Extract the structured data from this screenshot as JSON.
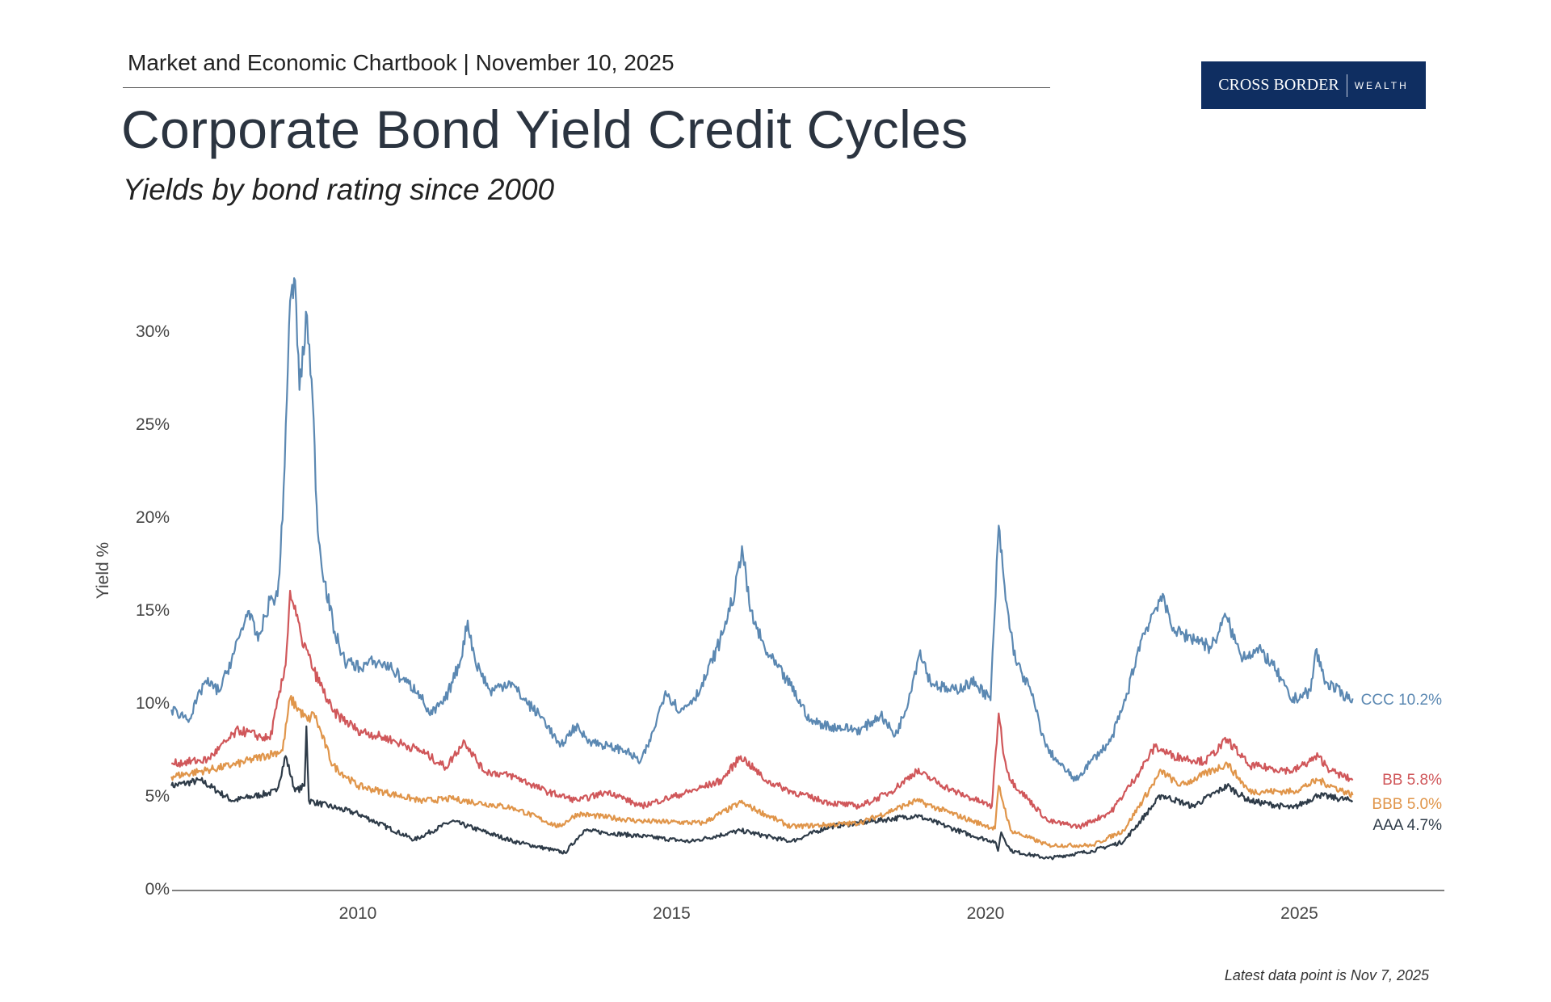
{
  "header": {
    "chartbook": "Market and Economic Chartbook | November 10, 2025",
    "title": "Corporate Bond Yield Credit Cycles",
    "subtitle": "Yields by bond rating since 2000"
  },
  "logo": {
    "primary": "CROSS BORDER",
    "secondary": "WEALTH",
    "background": "#0f2e61"
  },
  "footer": {
    "note": "Latest data point is Nov 7, 2025"
  },
  "chart_data": {
    "type": "line",
    "title": "Corporate Bond Yield Credit Cycles",
    "subtitle": "Yields by bond rating since 2000",
    "xlabel": "",
    "ylabel": "Yield %",
    "xlim": [
      2007.0,
      2027.3
    ],
    "ylim": [
      0,
      33
    ],
    "x_ticks": [
      {
        "value": 2010,
        "label": "2010"
      },
      {
        "value": 2015,
        "label": "2015"
      },
      {
        "value": 2020,
        "label": "2020"
      },
      {
        "value": 2025,
        "label": "2025"
      }
    ],
    "y_ticks": [
      {
        "value": 0,
        "label": "0%"
      },
      {
        "value": 5,
        "label": "5%"
      },
      {
        "value": 10,
        "label": "10%"
      },
      {
        "value": 15,
        "label": "15%"
      },
      {
        "value": 20,
        "label": "20%"
      },
      {
        "value": 25,
        "label": "25%"
      },
      {
        "value": 30,
        "label": "30%"
      }
    ],
    "grid": false,
    "legend": "end-of-line labels",
    "series": [
      {
        "name": "CCC",
        "end_label": "CCC 10.2%",
        "color": "#5b88b2",
        "points": [
          [
            2007.03,
            9.6
          ],
          [
            2007.32,
            9.1
          ],
          [
            2007.56,
            11.1
          ],
          [
            2007.8,
            10.6
          ],
          [
            2008.04,
            12.8
          ],
          [
            2008.25,
            14.9
          ],
          [
            2008.41,
            13.3
          ],
          [
            2008.6,
            15.5
          ],
          [
            2008.72,
            15.7
          ],
          [
            2008.8,
            19.8
          ],
          [
            2008.92,
            31.6
          ],
          [
            2009.0,
            32.7
          ],
          [
            2009.07,
            26.8
          ],
          [
            2009.19,
            30.8
          ],
          [
            2009.28,
            26.2
          ],
          [
            2009.36,
            19.2
          ],
          [
            2009.47,
            16.5
          ],
          [
            2009.63,
            13.8
          ],
          [
            2009.79,
            12.2
          ],
          [
            2010.03,
            11.9
          ],
          [
            2010.27,
            12.2
          ],
          [
            2010.51,
            11.9
          ],
          [
            2010.75,
            11.1
          ],
          [
            2010.96,
            10.6
          ],
          [
            2011.15,
            9.3
          ],
          [
            2011.39,
            10.1
          ],
          [
            2011.63,
            12.2
          ],
          [
            2011.75,
            14.4
          ],
          [
            2011.87,
            12.2
          ],
          [
            2012.11,
            10.6
          ],
          [
            2012.42,
            11.1
          ],
          [
            2012.66,
            10.1
          ],
          [
            2012.98,
            9.0
          ],
          [
            2013.22,
            7.6
          ],
          [
            2013.46,
            8.7
          ],
          [
            2013.7,
            7.9
          ],
          [
            2014.02,
            7.6
          ],
          [
            2014.26,
            7.4
          ],
          [
            2014.5,
            6.8
          ],
          [
            2014.66,
            7.9
          ],
          [
            2014.9,
            10.6
          ],
          [
            2015.14,
            9.5
          ],
          [
            2015.45,
            10.6
          ],
          [
            2015.77,
            13.3
          ],
          [
            2016.01,
            16.0
          ],
          [
            2016.12,
            18.4
          ],
          [
            2016.25,
            14.9
          ],
          [
            2016.49,
            12.8
          ],
          [
            2016.89,
            10.9
          ],
          [
            2017.21,
            9.0
          ],
          [
            2017.53,
            8.7
          ],
          [
            2018.01,
            8.5
          ],
          [
            2018.33,
            9.3
          ],
          [
            2018.56,
            8.2
          ],
          [
            2018.72,
            9.5
          ],
          [
            2018.96,
            12.8
          ],
          [
            2019.12,
            11.1
          ],
          [
            2019.44,
            10.6
          ],
          [
            2019.84,
            11.1
          ],
          [
            2020.08,
            10.1
          ],
          [
            2020.21,
            19.5
          ],
          [
            2020.32,
            15.5
          ],
          [
            2020.48,
            12.2
          ],
          [
            2020.72,
            10.6
          ],
          [
            2020.96,
            7.6
          ],
          [
            2021.2,
            6.6
          ],
          [
            2021.44,
            5.8
          ],
          [
            2021.67,
            6.8
          ],
          [
            2021.99,
            7.9
          ],
          [
            2022.23,
            10.1
          ],
          [
            2022.47,
            13.3
          ],
          [
            2022.79,
            15.7
          ],
          [
            2023.03,
            13.8
          ],
          [
            2023.43,
            13.3
          ],
          [
            2023.59,
            12.9
          ],
          [
            2023.83,
            14.6
          ],
          [
            2024.07,
            12.5
          ],
          [
            2024.39,
            12.8
          ],
          [
            2024.63,
            11.7
          ],
          [
            2024.87,
            10.1
          ],
          [
            2025.18,
            10.6
          ],
          [
            2025.26,
            12.8
          ],
          [
            2025.42,
            11.1
          ],
          [
            2025.74,
            10.3
          ],
          [
            2025.85,
            10.2
          ]
        ]
      },
      {
        "name": "BB",
        "end_label": "BB 5.8%",
        "color": "#d0575a",
        "points": [
          [
            2007.03,
            6.7
          ],
          [
            2007.6,
            6.9
          ],
          [
            2008.1,
            8.5
          ],
          [
            2008.6,
            8.0
          ],
          [
            2008.85,
            12.0
          ],
          [
            2008.92,
            16.0
          ],
          [
            2009.1,
            13.5
          ],
          [
            2009.3,
            11.7
          ],
          [
            2009.6,
            9.5
          ],
          [
            2010.0,
            8.5
          ],
          [
            2010.5,
            8.0
          ],
          [
            2011.0,
            7.4
          ],
          [
            2011.4,
            6.5
          ],
          [
            2011.7,
            7.9
          ],
          [
            2012.0,
            6.3
          ],
          [
            2012.5,
            6.0
          ],
          [
            2013.0,
            5.2
          ],
          [
            2013.5,
            4.7
          ],
          [
            2014.0,
            5.2
          ],
          [
            2014.5,
            4.4
          ],
          [
            2015.3,
            5.2
          ],
          [
            2015.8,
            5.8
          ],
          [
            2016.1,
            7.1
          ],
          [
            2016.5,
            5.8
          ],
          [
            2016.9,
            5.2
          ],
          [
            2017.5,
            4.6
          ],
          [
            2018.0,
            4.4
          ],
          [
            2018.5,
            5.2
          ],
          [
            2018.9,
            6.3
          ],
          [
            2019.5,
            5.2
          ],
          [
            2020.1,
            4.4
          ],
          [
            2020.21,
            9.4
          ],
          [
            2020.3,
            7.0
          ],
          [
            2020.4,
            5.8
          ],
          [
            2021.0,
            3.6
          ],
          [
            2021.5,
            3.3
          ],
          [
            2022.0,
            4.1
          ],
          [
            2022.4,
            6.0
          ],
          [
            2022.7,
            7.6
          ],
          [
            2023.0,
            7.1
          ],
          [
            2023.5,
            6.8
          ],
          [
            2023.85,
            8.0
          ],
          [
            2024.2,
            6.6
          ],
          [
            2024.9,
            6.3
          ],
          [
            2025.3,
            7.1
          ],
          [
            2025.5,
            6.3
          ],
          [
            2025.85,
            5.8
          ]
        ]
      },
      {
        "name": "BBB",
        "end_label": "BBB 5.0%",
        "color": "#e0954a",
        "points": [
          [
            2007.03,
            6.0
          ],
          [
            2008.0,
            6.6
          ],
          [
            2008.8,
            7.4
          ],
          [
            2008.92,
            10.2
          ],
          [
            2009.2,
            9.0
          ],
          [
            2009.3,
            9.4
          ],
          [
            2009.6,
            6.6
          ],
          [
            2010.0,
            5.5
          ],
          [
            2011.0,
            4.7
          ],
          [
            2011.5,
            4.8
          ],
          [
            2012.5,
            4.3
          ],
          [
            2013.2,
            3.3
          ],
          [
            2013.5,
            4.0
          ],
          [
            2014.5,
            3.6
          ],
          [
            2015.5,
            3.5
          ],
          [
            2016.1,
            4.6
          ],
          [
            2016.9,
            3.3
          ],
          [
            2018.0,
            3.5
          ],
          [
            2018.9,
            4.7
          ],
          [
            2019.8,
            3.6
          ],
          [
            2020.15,
            3.2
          ],
          [
            2020.21,
            5.5
          ],
          [
            2020.4,
            3.1
          ],
          [
            2021.0,
            2.3
          ],
          [
            2021.7,
            2.3
          ],
          [
            2022.2,
            3.1
          ],
          [
            2022.8,
            6.3
          ],
          [
            2023.1,
            5.5
          ],
          [
            2023.85,
            6.7
          ],
          [
            2024.2,
            5.2
          ],
          [
            2024.9,
            5.2
          ],
          [
            2025.3,
            5.8
          ],
          [
            2025.85,
            5.0
          ]
        ]
      },
      {
        "name": "AAA",
        "end_label": "AAA 4.7%",
        "color": "#2e3b48",
        "points": [
          [
            2007.03,
            5.5
          ],
          [
            2007.5,
            5.8
          ],
          [
            2008.0,
            4.7
          ],
          [
            2008.7,
            5.2
          ],
          [
            2008.85,
            7.1
          ],
          [
            2009.0,
            5.2
          ],
          [
            2009.15,
            5.5
          ],
          [
            2009.18,
            8.7
          ],
          [
            2009.22,
            4.7
          ],
          [
            2010.0,
            4.0
          ],
          [
            2010.9,
            2.6
          ],
          [
            2011.5,
            3.6
          ],
          [
            2012.5,
            2.5
          ],
          [
            2013.3,
            1.9
          ],
          [
            2013.6,
            3.1
          ],
          [
            2014.5,
            2.8
          ],
          [
            2015.3,
            2.5
          ],
          [
            2016.1,
            3.1
          ],
          [
            2016.9,
            2.5
          ],
          [
            2017.5,
            3.3
          ],
          [
            2018.9,
            3.9
          ],
          [
            2019.8,
            2.8
          ],
          [
            2020.15,
            2.5
          ],
          [
            2020.2,
            2.0
          ],
          [
            2020.25,
            3.0
          ],
          [
            2020.4,
            2.0
          ],
          [
            2021.0,
            1.6
          ],
          [
            2021.7,
            2.0
          ],
          [
            2022.2,
            2.5
          ],
          [
            2022.8,
            5.0
          ],
          [
            2023.3,
            4.4
          ],
          [
            2023.85,
            5.5
          ],
          [
            2024.2,
            4.7
          ],
          [
            2024.9,
            4.3
          ],
          [
            2025.3,
            5.0
          ],
          [
            2025.85,
            4.7
          ]
        ]
      }
    ]
  }
}
